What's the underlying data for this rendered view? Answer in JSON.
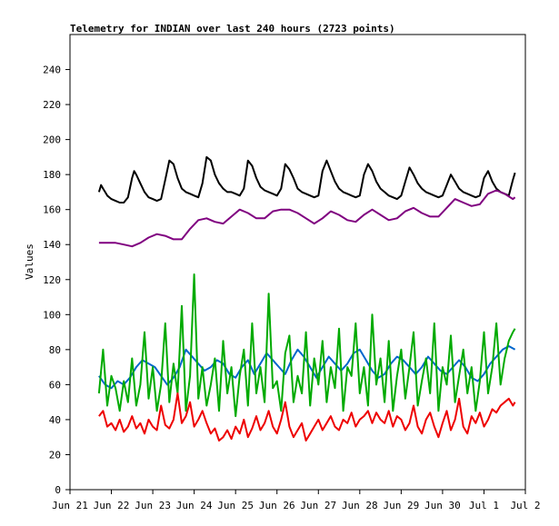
{
  "chart_data": {
    "type": "line",
    "title": "Telemetry for INDIAN over last 240 hours (2723 points)",
    "xlabel": "",
    "ylabel": "Values",
    "ylim": [
      0,
      260
    ],
    "y_ticks": [
      0,
      20,
      40,
      60,
      80,
      100,
      120,
      140,
      160,
      180,
      200,
      220,
      240
    ],
    "xlim": [
      0,
      11
    ],
    "x_ticks": [
      {
        "pos": 0,
        "label": "Jun 21"
      },
      {
        "pos": 1,
        "label": "Jun 22"
      },
      {
        "pos": 2,
        "label": "Jun 23"
      },
      {
        "pos": 3,
        "label": "Jun 24"
      },
      {
        "pos": 4,
        "label": "Jun 25"
      },
      {
        "pos": 5,
        "label": "Jun 26"
      },
      {
        "pos": 6,
        "label": "Jun 27"
      },
      {
        "pos": 7,
        "label": "Jun 28"
      },
      {
        "pos": 8,
        "label": "Jun 29"
      },
      {
        "pos": 9,
        "label": "Jun 30"
      },
      {
        "pos": 10,
        "label": "Jul 1"
      },
      {
        "pos": 11,
        "label": "Jul 2"
      }
    ],
    "grid": false,
    "legend": "none",
    "series": [
      {
        "color": "#000000",
        "x": [
          0.7,
          0.75,
          0.8,
          0.85,
          0.9,
          1.0,
          1.1,
          1.2,
          1.3,
          1.4,
          1.5,
          1.55,
          1.6,
          1.7,
          1.8,
          1.9,
          2.0,
          2.1,
          2.2,
          2.3,
          2.4,
          2.5,
          2.6,
          2.7,
          2.75,
          2.8,
          2.9,
          3.0,
          3.1,
          3.2,
          3.3,
          3.4,
          3.5,
          3.6,
          3.7,
          3.75,
          3.8,
          3.9,
          4.0,
          4.1,
          4.2,
          4.3,
          4.4,
          4.5,
          4.6,
          4.7,
          4.8,
          4.9,
          5.0,
          5.1,
          5.2,
          5.3,
          5.4,
          5.5,
          5.6,
          5.7,
          5.8,
          5.9,
          6.0,
          6.1,
          6.2,
          6.3,
          6.4,
          6.5,
          6.6,
          6.7,
          6.8,
          6.9,
          7.0,
          7.1,
          7.2,
          7.3,
          7.4,
          7.5,
          7.6,
          7.7,
          7.8,
          7.9,
          8.0,
          8.1,
          8.2,
          8.3,
          8.4,
          8.5,
          8.6,
          8.7,
          8.8,
          8.9,
          9.0,
          9.1,
          9.2,
          9.3,
          9.4,
          9.5,
          9.6,
          9.7,
          9.8,
          9.9,
          10.0,
          10.1,
          10.2,
          10.3,
          10.4,
          10.5,
          10.6,
          10.7,
          10.75
        ],
        "values": [
          170,
          174,
          172,
          170,
          168,
          166,
          165,
          164,
          164,
          167,
          178,
          182,
          180,
          175,
          170,
          167,
          166,
          165,
          166,
          177,
          188,
          186,
          178,
          172,
          171,
          170,
          169,
          168,
          167,
          175,
          190,
          188,
          180,
          175,
          172,
          171,
          170,
          170,
          169,
          168,
          172,
          188,
          185,
          178,
          173,
          171,
          170,
          169,
          168,
          172,
          186,
          183,
          178,
          172,
          170,
          169,
          168,
          167,
          168,
          182,
          188,
          182,
          176,
          172,
          170,
          169,
          168,
          167,
          168,
          180,
          186,
          182,
          176,
          172,
          170,
          168,
          167,
          166,
          168,
          176,
          184,
          180,
          175,
          172,
          170,
          169,
          168,
          167,
          168,
          174,
          180,
          176,
          172,
          170,
          169,
          168,
          167,
          168,
          178,
          182,
          176,
          172,
          170,
          169,
          168,
          177,
          181
        ]
      },
      {
        "color": "#800080",
        "x": [
          0.7,
          0.9,
          1.1,
          1.3,
          1.5,
          1.7,
          1.9,
          2.1,
          2.3,
          2.5,
          2.7,
          2.9,
          3.1,
          3.3,
          3.5,
          3.7,
          3.9,
          4.1,
          4.3,
          4.5,
          4.7,
          4.9,
          5.1,
          5.3,
          5.5,
          5.7,
          5.9,
          6.1,
          6.3,
          6.5,
          6.7,
          6.9,
          7.1,
          7.3,
          7.5,
          7.7,
          7.9,
          8.1,
          8.3,
          8.5,
          8.7,
          8.9,
          9.1,
          9.3,
          9.5,
          9.7,
          9.9,
          10.1,
          10.3,
          10.5,
          10.7,
          10.75
        ],
        "values": [
          141,
          141,
          141,
          140,
          139,
          141,
          144,
          146,
          145,
          143,
          143,
          149,
          154,
          155,
          153,
          152,
          156,
          160,
          158,
          155,
          155,
          159,
          160,
          160,
          158,
          155,
          152,
          155,
          159,
          157,
          154,
          153,
          157,
          160,
          157,
          154,
          155,
          159,
          161,
          158,
          156,
          156,
          161,
          166,
          164,
          162,
          163,
          169,
          171,
          169,
          166,
          167
        ]
      },
      {
        "color": "#0066cc",
        "x": [
          0.7,
          0.85,
          1.0,
          1.15,
          1.3,
          1.45,
          1.6,
          1.75,
          1.9,
          2.05,
          2.2,
          2.35,
          2.5,
          2.65,
          2.8,
          2.95,
          3.1,
          3.25,
          3.4,
          3.55,
          3.7,
          3.85,
          4.0,
          4.15,
          4.3,
          4.45,
          4.6,
          4.75,
          4.9,
          5.05,
          5.2,
          5.35,
          5.5,
          5.65,
          5.8,
          5.95,
          6.1,
          6.25,
          6.4,
          6.55,
          6.7,
          6.85,
          7.0,
          7.15,
          7.3,
          7.45,
          7.6,
          7.75,
          7.9,
          8.05,
          8.2,
          8.35,
          8.5,
          8.65,
          8.8,
          8.95,
          9.1,
          9.25,
          9.4,
          9.55,
          9.7,
          9.85,
          10.0,
          10.15,
          10.3,
          10.45,
          10.6,
          10.75
        ],
        "values": [
          65,
          60,
          58,
          62,
          60,
          64,
          70,
          74,
          72,
          70,
          65,
          60,
          64,
          70,
          80,
          76,
          72,
          68,
          70,
          74,
          72,
          66,
          64,
          70,
          74,
          66,
          72,
          78,
          74,
          70,
          66,
          74,
          80,
          76,
          70,
          64,
          70,
          76,
          72,
          68,
          72,
          78,
          80,
          74,
          68,
          64,
          66,
          72,
          76,
          74,
          70,
          66,
          70,
          76,
          72,
          68,
          66,
          70,
          74,
          70,
          64,
          62,
          66,
          72,
          76,
          80,
          82,
          80
        ]
      },
      {
        "color": "#00aa00",
        "x": [
          0.7,
          0.8,
          0.9,
          1.0,
          1.1,
          1.2,
          1.3,
          1.4,
          1.5,
          1.6,
          1.7,
          1.8,
          1.9,
          2.0,
          2.1,
          2.2,
          2.3,
          2.4,
          2.5,
          2.6,
          2.7,
          2.8,
          2.9,
          3.0,
          3.1,
          3.2,
          3.3,
          3.4,
          3.5,
          3.6,
          3.7,
          3.8,
          3.9,
          4.0,
          4.1,
          4.2,
          4.3,
          4.4,
          4.5,
          4.6,
          4.7,
          4.8,
          4.9,
          5.0,
          5.1,
          5.2,
          5.3,
          5.4,
          5.5,
          5.6,
          5.7,
          5.8,
          5.9,
          6.0,
          6.1,
          6.2,
          6.3,
          6.4,
          6.5,
          6.6,
          6.7,
          6.8,
          6.9,
          7.0,
          7.1,
          7.2,
          7.3,
          7.4,
          7.5,
          7.6,
          7.7,
          7.8,
          7.9,
          8.0,
          8.1,
          8.2,
          8.3,
          8.4,
          8.5,
          8.6,
          8.7,
          8.8,
          8.9,
          9.0,
          9.1,
          9.2,
          9.3,
          9.4,
          9.5,
          9.6,
          9.7,
          9.8,
          9.9,
          10.0,
          10.1,
          10.2,
          10.3,
          10.4,
          10.5,
          10.6,
          10.7,
          10.75
        ],
        "values": [
          55,
          80,
          48,
          65,
          58,
          45,
          62,
          50,
          75,
          48,
          60,
          90,
          52,
          70,
          45,
          60,
          95,
          50,
          72,
          55,
          105,
          45,
          65,
          123,
          52,
          70,
          48,
          60,
          75,
          45,
          85,
          55,
          70,
          42,
          65,
          80,
          48,
          95,
          55,
          70,
          50,
          112,
          58,
          62,
          45,
          78,
          88,
          50,
          65,
          55,
          90,
          48,
          75,
          60,
          85,
          50,
          70,
          58,
          92,
          45,
          70,
          65,
          95,
          55,
          70,
          48,
          100,
          60,
          75,
          50,
          85,
          45,
          65,
          80,
          52,
          70,
          90,
          48,
          62,
          75,
          55,
          95,
          45,
          70,
          60,
          88,
          50,
          65,
          80,
          55,
          70,
          45,
          62,
          90,
          55,
          70,
          95,
          60,
          75,
          85,
          90,
          92
        ]
      },
      {
        "color": "#ee0000",
        "x": [
          0.7,
          0.8,
          0.9,
          1.0,
          1.1,
          1.2,
          1.3,
          1.4,
          1.5,
          1.6,
          1.7,
          1.8,
          1.9,
          2.0,
          2.1,
          2.2,
          2.3,
          2.4,
          2.5,
          2.6,
          2.7,
          2.8,
          2.9,
          3.0,
          3.1,
          3.2,
          3.3,
          3.4,
          3.5,
          3.6,
          3.7,
          3.8,
          3.9,
          4.0,
          4.1,
          4.2,
          4.3,
          4.4,
          4.5,
          4.6,
          4.7,
          4.8,
          4.9,
          5.0,
          5.1,
          5.2,
          5.3,
          5.4,
          5.5,
          5.6,
          5.7,
          5.8,
          5.9,
          6.0,
          6.1,
          6.2,
          6.3,
          6.4,
          6.5,
          6.6,
          6.7,
          6.8,
          6.9,
          7.0,
          7.1,
          7.2,
          7.3,
          7.4,
          7.5,
          7.6,
          7.7,
          7.8,
          7.9,
          8.0,
          8.1,
          8.2,
          8.3,
          8.4,
          8.5,
          8.6,
          8.7,
          8.8,
          8.9,
          9.0,
          9.1,
          9.2,
          9.3,
          9.4,
          9.5,
          9.6,
          9.7,
          9.8,
          9.9,
          10.0,
          10.1,
          10.2,
          10.3,
          10.4,
          10.5,
          10.6,
          10.7,
          10.75
        ],
        "values": [
          42,
          45,
          36,
          38,
          34,
          40,
          33,
          36,
          42,
          35,
          38,
          32,
          40,
          36,
          34,
          48,
          37,
          35,
          40,
          55,
          38,
          42,
          50,
          36,
          40,
          45,
          38,
          32,
          35,
          28,
          30,
          34,
          29,
          36,
          32,
          40,
          30,
          35,
          42,
          34,
          38,
          45,
          36,
          32,
          40,
          50,
          36,
          30,
          34,
          38,
          28,
          32,
          36,
          40,
          34,
          38,
          42,
          36,
          34,
          40,
          38,
          44,
          36,
          40,
          42,
          45,
          38,
          44,
          40,
          38,
          45,
          36,
          42,
          40,
          34,
          38,
          48,
          36,
          32,
          40,
          44,
          36,
          30,
          38,
          45,
          34,
          40,
          52,
          36,
          32,
          42,
          38,
          44,
          36,
          40,
          46,
          44,
          48,
          50,
          52,
          48,
          50
        ]
      }
    ]
  }
}
